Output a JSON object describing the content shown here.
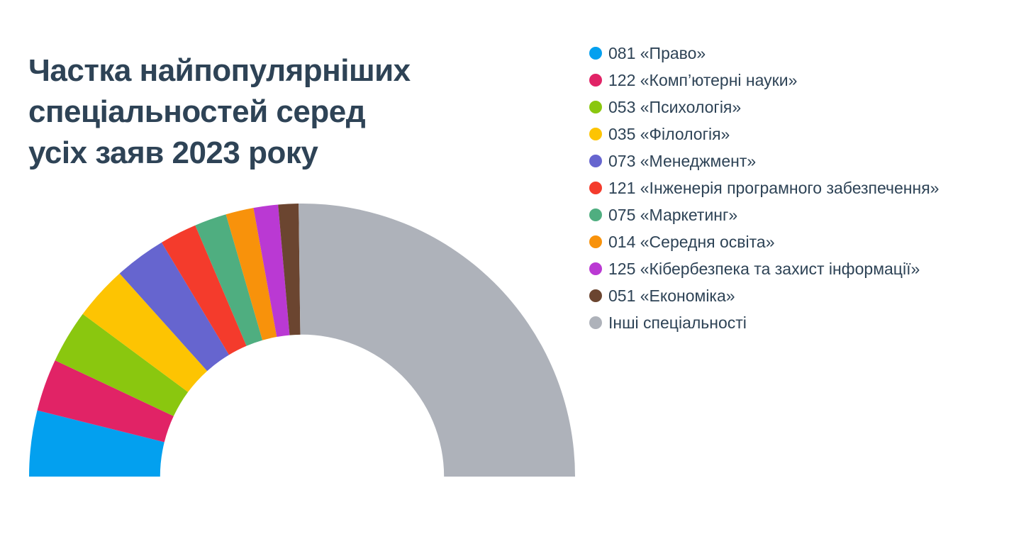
{
  "title": {
    "lines": [
      "Частка найпопулярніших",
      "спеціальностей серед",
      "усіх заяв 2023 року"
    ]
  },
  "colors": {
    "background": "#ffffff",
    "text": "#2e4356"
  },
  "chart_data": {
    "type": "pie",
    "variant": "half-donut",
    "title": "Частка найпопулярніших спеціальностей серед усіх заяв 2023 року",
    "unit": "percent-of-total-applications",
    "start_angle_deg": 180,
    "end_angle_deg": 0,
    "inner_radius_ratio": 0.52,
    "legend_position": "right",
    "grid": false,
    "segments": [
      {
        "label": "081 «Право»",
        "value": 7.8,
        "color": "#03a0ef"
      },
      {
        "label": "122 «Комп’ютерні науки»",
        "value": 6.2,
        "color": "#e12366"
      },
      {
        "label": "053 «Психологія»",
        "value": 6.3,
        "color": "#8ac70f"
      },
      {
        "label": "035 «Філологія»",
        "value": 6.4,
        "color": "#fdc402"
      },
      {
        "label": "073 «Менеджмент»",
        "value": 6.1,
        "color": "#6665cf"
      },
      {
        "label": "121 «Інженерія програмного забезпечення»",
        "value": 4.4,
        "color": "#f43b2c"
      },
      {
        "label": "075 «Маркетинг»",
        "value": 3.8,
        "color": "#4fae80"
      },
      {
        "label": "014 «Середня освіта»",
        "value": 3.3,
        "color": "#f8920b"
      },
      {
        "label": "125 «Кібербезпека та захист інформації»",
        "value": 2.9,
        "color": "#ba39d3"
      },
      {
        "label": "051 «Економіка»",
        "value": 2.4,
        "color": "#6b4530"
      },
      {
        "label": "Інші спеціальності",
        "value": 50.4,
        "color": "#aeb2ba"
      }
    ]
  }
}
